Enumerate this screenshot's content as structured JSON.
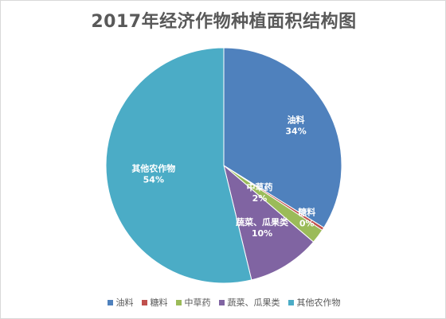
{
  "chart_data": {
    "type": "pie",
    "title": "2017年经济作物种植面积结构图",
    "categories": [
      "油料",
      "糖料",
      "中草药",
      "蔬菜、瓜果类",
      "其他农作物"
    ],
    "values": [
      34,
      0.4,
      2,
      10,
      54
    ],
    "value_labels": [
      "34%",
      "0%",
      "2%",
      "10%",
      "54%"
    ],
    "colors": [
      "#4F81BD",
      "#C0504D",
      "#9BBB59",
      "#8064A2",
      "#4BACC6"
    ],
    "start_angle_deg": 0,
    "direction": "clockwise",
    "legend_position": "bottom"
  }
}
